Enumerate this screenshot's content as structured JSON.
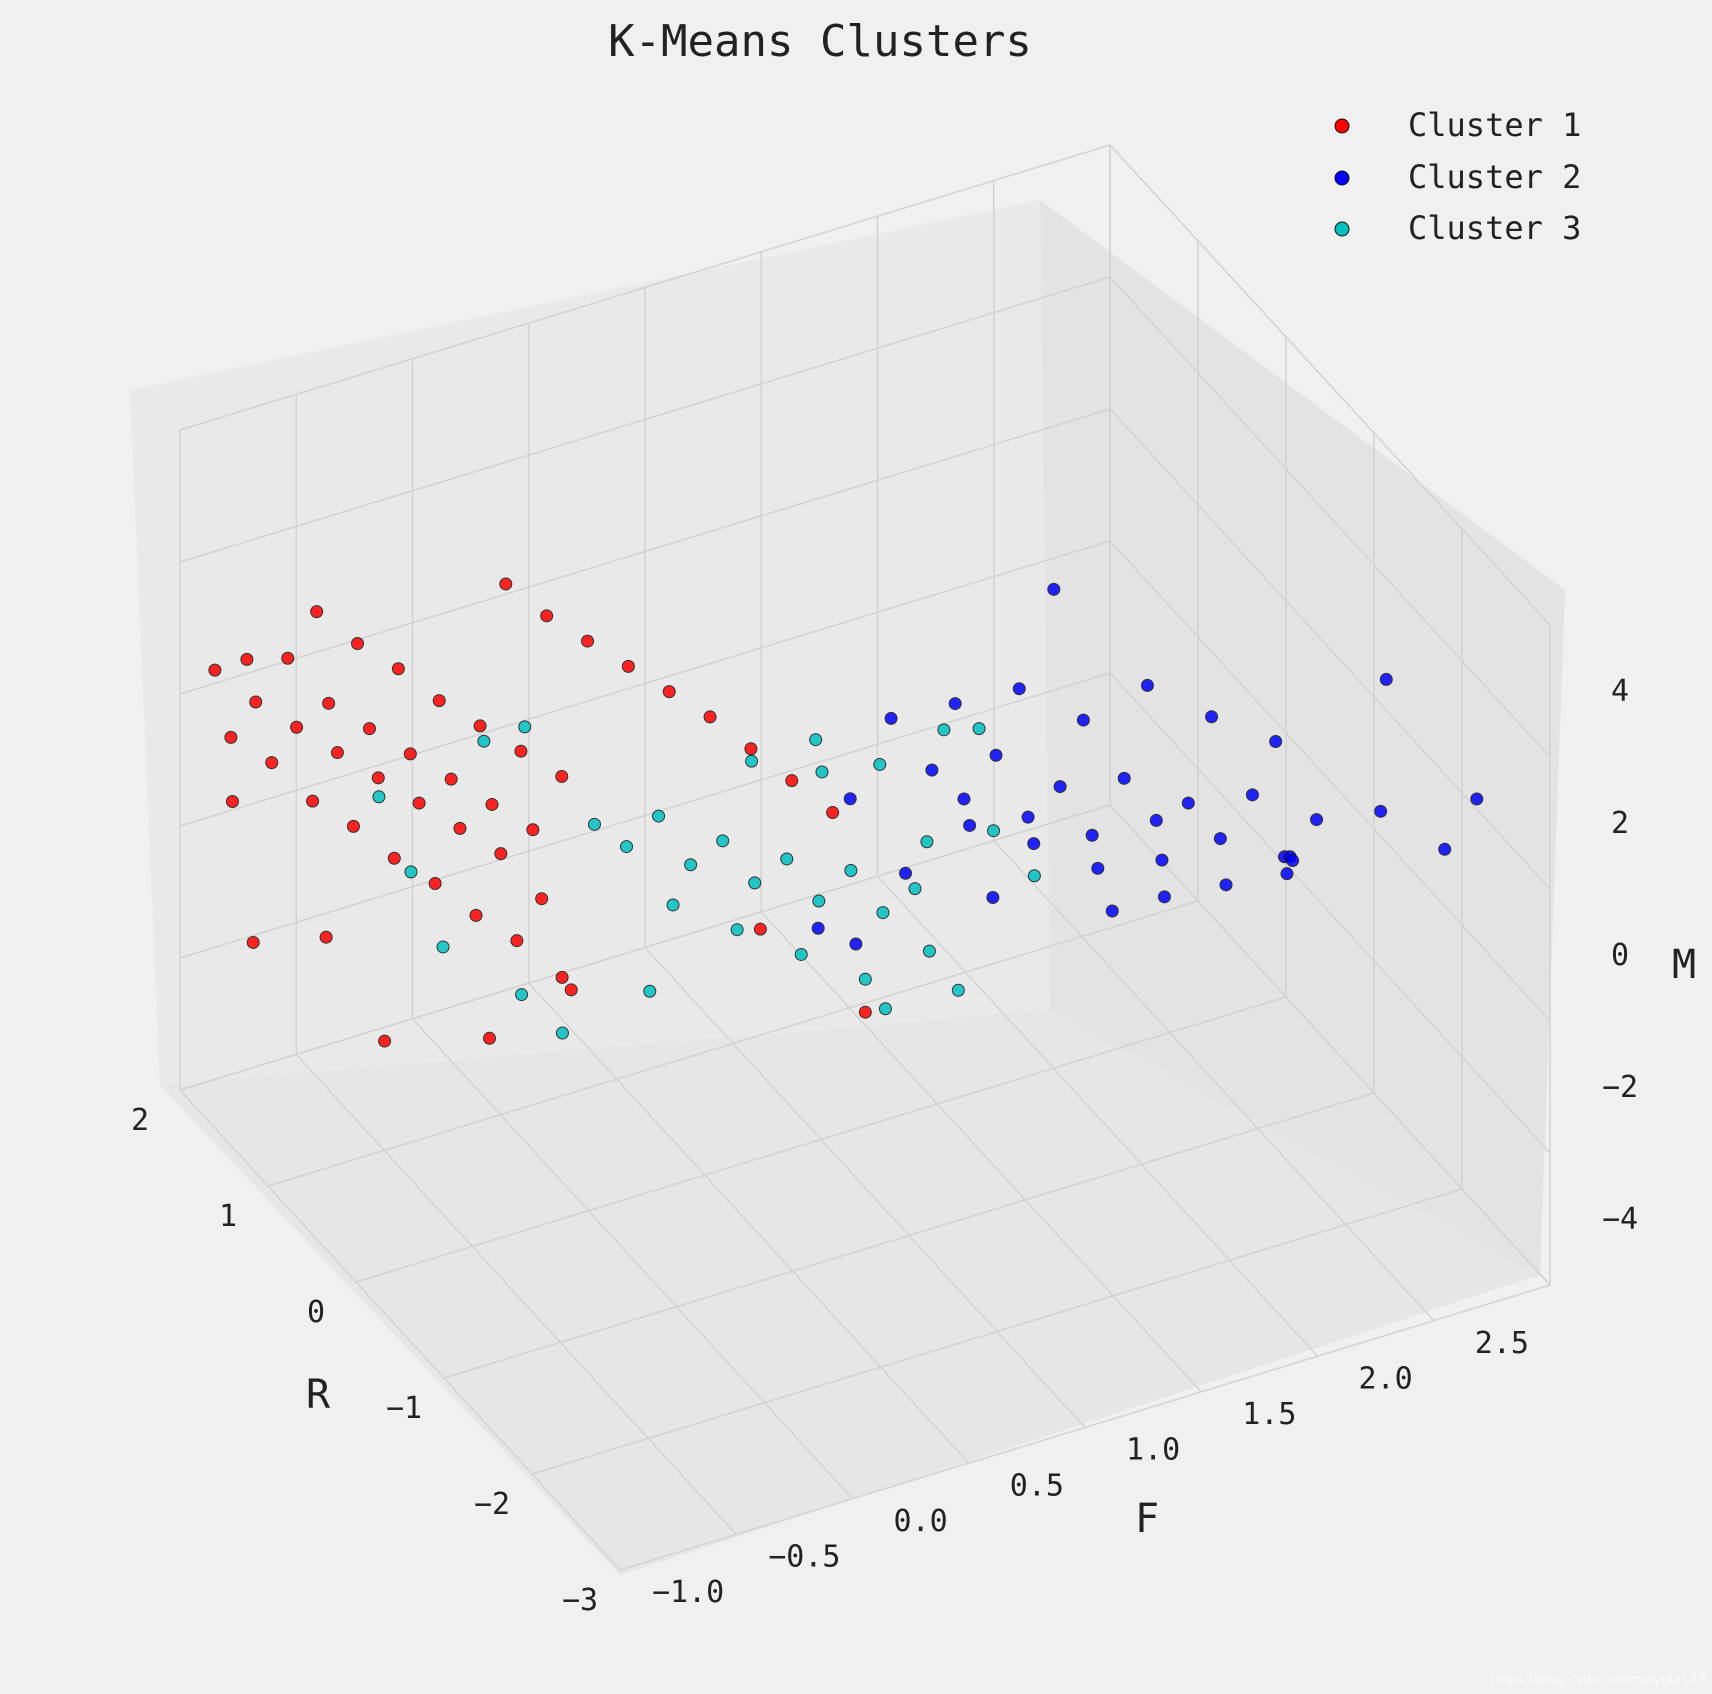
{
  "chart_data": {
    "type": "scatter",
    "projection": "3d",
    "title": "K-Means Clusters",
    "xlabel": "R",
    "ylabel": "F",
    "zlabel": "M",
    "xlim": [
      -3,
      2
    ],
    "ylim": [
      -1.25,
      2.75
    ],
    "zlim": [
      -5,
      5
    ],
    "x_ticks": [
      "2",
      "1",
      "0",
      "−1",
      "−2",
      "−3"
    ],
    "y_ticks": [
      "−1.0",
      "−0.5",
      "0.0",
      "0.5",
      "1.0",
      "1.5",
      "2.0",
      "2.5"
    ],
    "z_ticks": [
      "4",
      "2",
      "0",
      "−2",
      "−4"
    ],
    "legend_position": "top-right",
    "grid": true,
    "colors": {
      "Cluster 1": "#ff0000",
      "Cluster 2": "#0000ff",
      "Cluster 3": "#00c0c0"
    },
    "series": [
      {
        "name": "Cluster 1",
        "color": "#ff0000",
        "centroid": [
          1.4,
          -0.6,
          0.6
        ],
        "points": [
          [
            2.0,
            -1.1,
            1.2
          ],
          [
            1.9,
            -1.0,
            1.4
          ],
          [
            1.8,
            -1.0,
            0.9
          ],
          [
            1.7,
            -0.9,
            1.6
          ],
          [
            1.6,
            -0.9,
            0.7
          ],
          [
            1.5,
            -0.8,
            1.1
          ],
          [
            1.4,
            -0.8,
            0.5
          ],
          [
            1.3,
            -0.7,
            0.9
          ],
          [
            1.2,
            -0.7,
            0.3
          ],
          [
            1.1,
            -0.6,
            0.7
          ],
          [
            1.0,
            -0.6,
            0.1
          ],
          [
            0.9,
            -0.5,
            0.5
          ],
          [
            0.8,
            -0.5,
            -0.1
          ],
          [
            0.7,
            -0.4,
            0.3
          ],
          [
            0.6,
            -0.4,
            -0.3
          ],
          [
            0.5,
            -0.3,
            0.1
          ],
          [
            1.95,
            -1.05,
            0.2
          ],
          [
            1.75,
            -0.95,
            0.0
          ],
          [
            1.55,
            -0.85,
            -0.4
          ],
          [
            1.35,
            -0.75,
            -0.6
          ],
          [
            1.15,
            -0.65,
            -0.9
          ],
          [
            0.95,
            -0.55,
            -1.1
          ],
          [
            0.75,
            -0.45,
            -1.4
          ],
          [
            0.55,
            -0.35,
            -1.6
          ],
          [
            0.4,
            -0.3,
            -0.8
          ],
          [
            0.3,
            -0.25,
            -1.9
          ],
          [
            1.9,
            -0.7,
            1.8
          ],
          [
            1.7,
            -0.6,
            1.5
          ],
          [
            1.5,
            -0.5,
            1.3
          ],
          [
            1.3,
            -0.4,
            1.0
          ],
          [
            1.1,
            -0.3,
            0.8
          ],
          [
            0.9,
            -0.2,
            0.6
          ],
          [
            0.7,
            -0.1,
            0.4
          ],
          [
            1.6,
            0.0,
            1.9
          ],
          [
            1.4,
            0.1,
            1.6
          ],
          [
            1.2,
            0.2,
            1.4
          ],
          [
            1.0,
            0.3,
            1.2
          ],
          [
            0.8,
            0.4,
            1.0
          ],
          [
            0.6,
            0.5,
            0.8
          ],
          [
            0.4,
            0.6,
            0.5
          ],
          [
            0.2,
            0.7,
            0.2
          ],
          [
            0.0,
            0.8,
            -0.1
          ],
          [
            1.8,
            -1.1,
            -0.5
          ],
          [
            1.0,
            -1.0,
            -1.5
          ],
          [
            0.2,
            -0.6,
            -2.3
          ],
          [
            -0.2,
            -0.4,
            -1.2
          ],
          [
            -0.5,
            0.3,
            -0.6
          ],
          [
            -0.9,
            0.6,
            -1.6
          ],
          [
            1.3,
            -1.2,
            -1.8
          ],
          [
            0.6,
            -0.9,
            -2.6
          ]
        ]
      },
      {
        "name": "Cluster 2",
        "color": "#0000ff",
        "centroid": [
          -0.9,
          1.5,
          0.8
        ],
        "points": [
          [
            -0.6,
            1.0,
            1.2
          ],
          [
            -0.7,
            1.1,
            0.8
          ],
          [
            -0.8,
            1.2,
            1.5
          ],
          [
            -0.9,
            1.3,
            0.6
          ],
          [
            -1.0,
            1.4,
            1.1
          ],
          [
            -1.1,
            1.5,
            0.4
          ],
          [
            -1.2,
            1.6,
            1.3
          ],
          [
            -1.3,
            1.7,
            0.7
          ],
          [
            -1.4,
            1.8,
            1.0
          ],
          [
            -1.5,
            1.9,
            0.5
          ],
          [
            -1.6,
            2.0,
            1.2
          ],
          [
            -1.7,
            2.1,
            0.3
          ],
          [
            -1.8,
            2.2,
            0.9
          ],
          [
            -0.5,
            1.2,
            0.0
          ],
          [
            -0.7,
            1.4,
            -0.2
          ],
          [
            -0.9,
            1.6,
            -0.5
          ],
          [
            -1.1,
            1.8,
            -0.3
          ],
          [
            -1.3,
            2.0,
            -0.6
          ],
          [
            -1.5,
            2.2,
            -0.1
          ],
          [
            -0.4,
            0.9,
            1.8
          ],
          [
            -0.6,
            1.1,
            2.1
          ],
          [
            -0.8,
            1.3,
            2.4
          ],
          [
            -1.0,
            1.5,
            2.0
          ],
          [
            -1.2,
            1.7,
            2.6
          ],
          [
            -1.4,
            1.9,
            2.2
          ],
          [
            -1.6,
            2.1,
            1.9
          ],
          [
            -2.0,
            2.4,
            1.1
          ],
          [
            -2.2,
            2.6,
            0.6
          ],
          [
            -2.3,
            2.7,
            1.4
          ],
          [
            -0.3,
            1.0,
            -0.8
          ],
          [
            -0.5,
            1.3,
            -1.2
          ],
          [
            -0.8,
            1.7,
            -1.4
          ],
          [
            -1.2,
            2.3,
            -0.9
          ],
          [
            -0.2,
            0.8,
            0.4
          ],
          [
            -0.4,
            1.6,
            3.0
          ],
          [
            -1.8,
            2.5,
            2.7
          ],
          [
            -0.1,
            0.7,
            -1.6
          ],
          [
            -1.0,
            2.4,
            -1.1
          ],
          [
            -0.6,
            2.0,
            -1.8
          ],
          [
            0.0,
            0.9,
            -2.2
          ]
        ]
      },
      {
        "name": "Cluster 3",
        "color": "#00c0c0",
        "centroid": [
          -0.6,
          0.3,
          0.3
        ],
        "points": [
          [
            -0.2,
            -0.3,
            1.2
          ],
          [
            -0.3,
            -0.2,
            0.9
          ],
          [
            -0.4,
            -0.1,
            1.4
          ],
          [
            -0.5,
            0.0,
            0.7
          ],
          [
            -0.6,
            0.1,
            1.1
          ],
          [
            -0.7,
            0.2,
            0.5
          ],
          [
            -0.8,
            0.3,
            0.9
          ],
          [
            -0.9,
            0.4,
            0.3
          ],
          [
            -1.0,
            0.5,
            0.8
          ],
          [
            -1.1,
            0.6,
            0.2
          ],
          [
            -1.2,
            0.7,
            0.6
          ],
          [
            -0.3,
            0.0,
            -0.2
          ],
          [
            -0.5,
            0.2,
            -0.5
          ],
          [
            -0.7,
            0.4,
            -0.8
          ],
          [
            -0.9,
            0.6,
            -1.1
          ],
          [
            -1.1,
            0.8,
            -0.6
          ],
          [
            -0.4,
            0.3,
            1.8
          ],
          [
            -0.6,
            0.5,
            2.2
          ],
          [
            -0.8,
            0.7,
            1.9
          ],
          [
            -1.0,
            0.9,
            2.5
          ],
          [
            -1.3,
            1.0,
            1.3
          ],
          [
            -1.5,
            1.1,
            0.8
          ],
          [
            0.1,
            -0.5,
            -1.6
          ],
          [
            -0.1,
            -0.4,
            -2.0
          ],
          [
            -0.3,
            -0.1,
            -1.4
          ],
          [
            0.0,
            -0.7,
            2.6
          ],
          [
            -0.2,
            -0.6,
            3.0
          ],
          [
            -1.4,
            0.9,
            3.1
          ],
          [
            -0.9,
            1.0,
            -1.7
          ],
          [
            -0.6,
            0.8,
            -2.2
          ],
          [
            0.3,
            -0.9,
            0.4
          ],
          [
            0.2,
            -0.8,
            -0.7
          ],
          [
            0.4,
            -1.0,
            1.5
          ],
          [
            -1.2,
            0.3,
            2.8
          ],
          [
            -1.6,
            0.6,
            2.0
          ]
        ]
      }
    ]
  },
  "legend": {
    "items": [
      {
        "label": "Cluster 1",
        "color": "#ff0000"
      },
      {
        "label": "Cluster 2",
        "color": "#0000ff"
      },
      {
        "label": "Cluster 3",
        "color": "#00c0c0"
      }
    ]
  },
  "watermark": "https://blog.csdn.net/maiyida123"
}
